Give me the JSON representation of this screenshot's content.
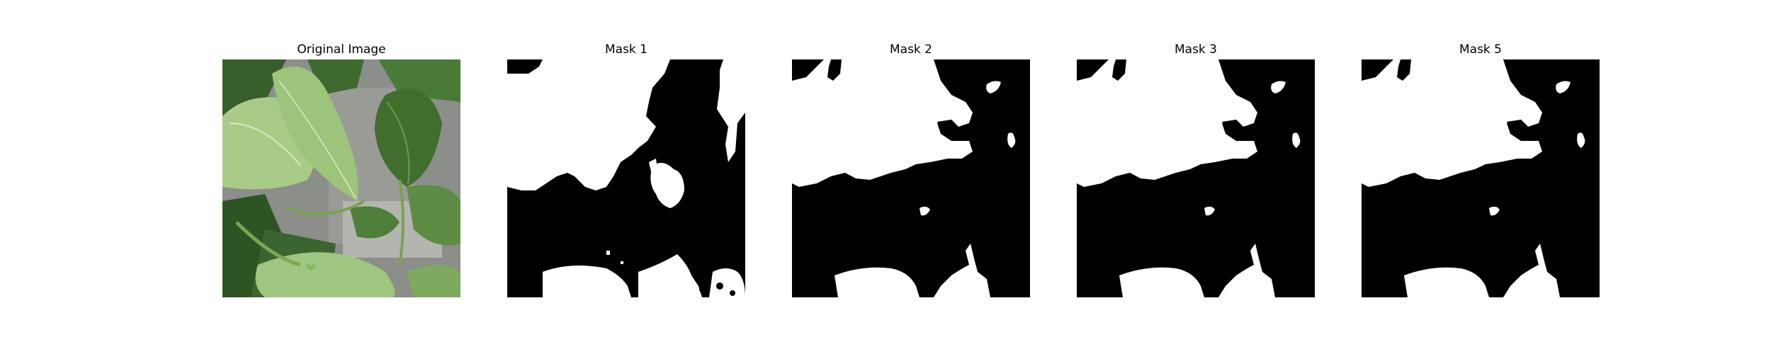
{
  "panels": [
    {
      "title": "Original Image"
    },
    {
      "title": "Mask 1"
    },
    {
      "title": "Mask 2"
    },
    {
      "title": "Mask 3"
    },
    {
      "title": "Mask 5"
    }
  ],
  "colors": {
    "mask_foreground": "#ffffff",
    "mask_background": "#000000",
    "leaf_light": "#a9cf86",
    "leaf_mid": "#6f9e4f",
    "leaf_dark": "#2f5a25",
    "background_gray": "#8a8c88"
  }
}
